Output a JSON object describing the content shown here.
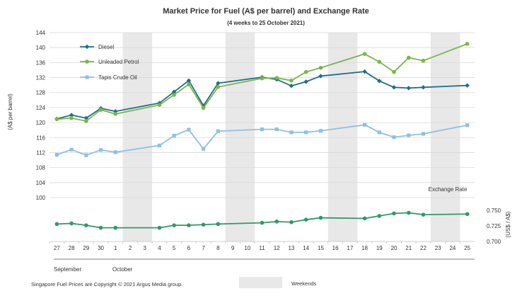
{
  "chart_data": {
    "type": "line",
    "title": "Market Price for Fuel  (A$ per barrel) and Exchange  Rate",
    "subtitle": "(4 weeks to 25 October 2021)",
    "ylabel_left": "(A$ per barrel)",
    "ylabel_right": "(US$ / A$)",
    "y_left_ticks": [
      "144",
      "140",
      "136",
      "132",
      "128",
      "124",
      "120",
      "116",
      "112",
      "108",
      "104",
      "100"
    ],
    "y_left_range": [
      100,
      144
    ],
    "y_right_ticks": [
      "0.750",
      "0.725",
      "0.700"
    ],
    "y_right_range": [
      0.7,
      0.75
    ],
    "x_categories": [
      "27",
      "28",
      "29",
      "30",
      "1",
      "2",
      "3",
      "4",
      "5",
      "6",
      "7",
      "8",
      "9",
      "10",
      "11",
      "12",
      "13",
      "14",
      "15",
      "16",
      "17",
      "18",
      "19",
      "20",
      "21",
      "22",
      "23",
      "24",
      "25"
    ],
    "x_month_labels": [
      {
        "label": "September",
        "from": "27",
        "to": "30"
      },
      {
        "label": "October",
        "from": "1",
        "to": "25"
      }
    ],
    "weekend_ranges": [
      [
        "2",
        "3"
      ],
      [
        "9",
        "10"
      ],
      [
        "16",
        "17"
      ],
      [
        "23",
        "24"
      ]
    ],
    "series": [
      {
        "name": "Diesel",
        "color": "#1f6e8c",
        "marker": "diamond",
        "points": [
          [
            0,
            121
          ],
          [
            1,
            122
          ],
          [
            2,
            121.2
          ],
          [
            3,
            123.8
          ],
          [
            4,
            123
          ],
          [
            7,
            125.2
          ],
          [
            8,
            128.2
          ],
          [
            9,
            131.2
          ],
          [
            10,
            124.5
          ],
          [
            11,
            130.5
          ],
          [
            14,
            132.1
          ],
          [
            15,
            131.5
          ],
          [
            16,
            129.8
          ],
          [
            17,
            130.9
          ],
          [
            18,
            132.4
          ],
          [
            21,
            133.6
          ],
          [
            22,
            131.1
          ],
          [
            23,
            129.4
          ],
          [
            24,
            129.2
          ],
          [
            25,
            129.4
          ],
          [
            28,
            129.9
          ]
        ]
      },
      {
        "name": "Unleaded Petrol",
        "color": "#7ab648",
        "marker": "circle",
        "points": [
          [
            0,
            120.9
          ],
          [
            1,
            121.2
          ],
          [
            2,
            120.4
          ],
          [
            3,
            123.4
          ],
          [
            4,
            122.3
          ],
          [
            7,
            124.7
          ],
          [
            8,
            127.4
          ],
          [
            9,
            130.2
          ],
          [
            10,
            123.9
          ],
          [
            11,
            129.5
          ],
          [
            14,
            131.8
          ],
          [
            15,
            131.9
          ],
          [
            16,
            131.2
          ],
          [
            17,
            133.5
          ],
          [
            18,
            134.6
          ],
          [
            21,
            138.3
          ],
          [
            22,
            136.2
          ],
          [
            23,
            133.5
          ],
          [
            24,
            137.3
          ],
          [
            25,
            136.5
          ],
          [
            28,
            141
          ]
        ]
      },
      {
        "name": "Tapis Crude Oil",
        "color": "#8ec0e4",
        "marker": "square",
        "points": [
          [
            0,
            111.4
          ],
          [
            1,
            112.8
          ],
          [
            2,
            111.3
          ],
          [
            3,
            112.7
          ],
          [
            4,
            112.1
          ],
          [
            7,
            113.9
          ],
          [
            8,
            116.5
          ],
          [
            9,
            118.1
          ],
          [
            10,
            113
          ],
          [
            11,
            117.7
          ],
          [
            14,
            118.2
          ],
          [
            15,
            118.2
          ],
          [
            16,
            117.4
          ],
          [
            17,
            117.4
          ],
          [
            18,
            117.8
          ],
          [
            21,
            119.4
          ],
          [
            22,
            117.4
          ],
          [
            23,
            116.1
          ],
          [
            24,
            116.6
          ],
          [
            25,
            117
          ],
          [
            28,
            119.3
          ]
        ]
      },
      {
        "name": "Exchange  Rate",
        "color": "#2e9a6a",
        "marker": "circle",
        "points": [
          [
            0,
            0.728
          ],
          [
            1,
            0.729
          ],
          [
            2,
            0.726
          ],
          [
            3,
            0.722
          ],
          [
            4,
            0.722
          ],
          [
            7,
            0.722
          ],
          [
            8,
            0.726
          ],
          [
            9,
            0.726
          ],
          [
            10,
            0.727
          ],
          [
            11,
            0.728
          ],
          [
            14,
            0.73
          ],
          [
            15,
            0.732
          ],
          [
            16,
            0.731
          ],
          [
            17,
            0.735
          ],
          [
            18,
            0.738
          ],
          [
            21,
            0.737
          ],
          [
            22,
            0.741
          ],
          [
            23,
            0.745
          ],
          [
            24,
            0.746
          ],
          [
            25,
            0.743
          ],
          [
            28,
            0.744
          ]
        ]
      }
    ],
    "exchange_label": "Exchange  Rate",
    "legend_placement": "top-left",
    "footnote": "Singapore  Fuel Prices are Copyright  © 2021  Argus Media group.",
    "weekend_legend": "Weekends"
  },
  "colors": {
    "weekend": "#e8e8e8",
    "grid": "#d9d9d9",
    "axis": "#bfbfbf"
  }
}
